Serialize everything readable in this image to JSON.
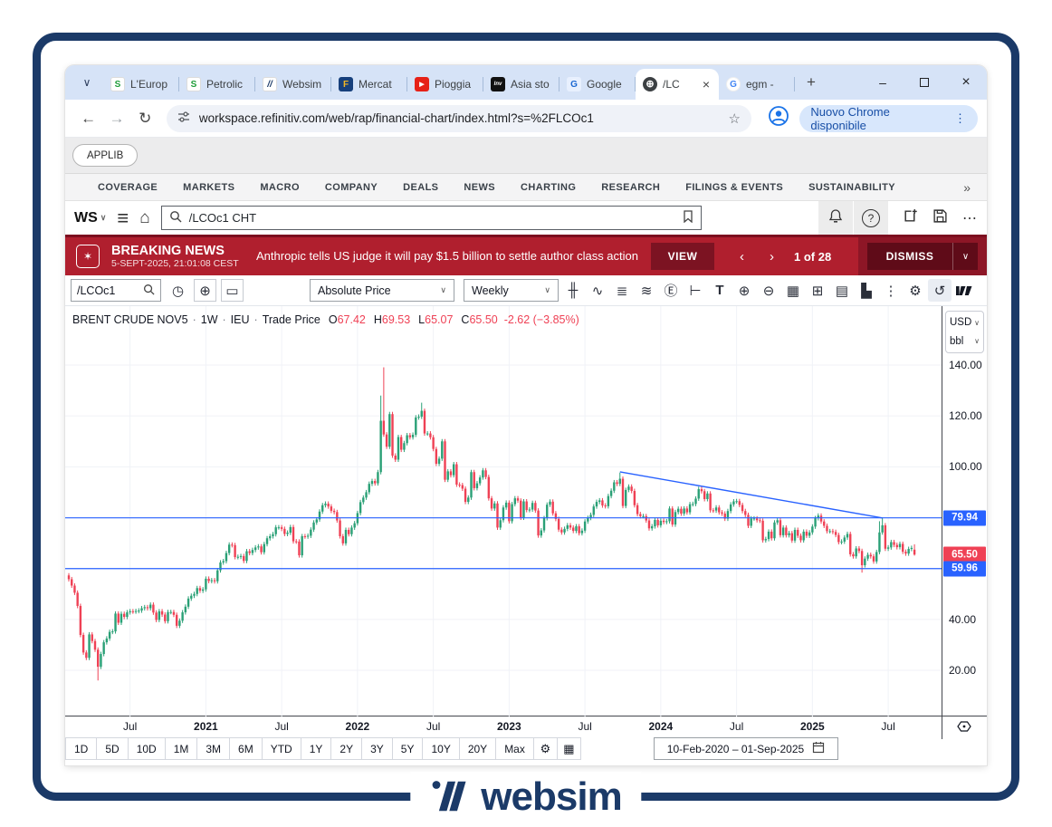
{
  "window": {
    "tabs": [
      {
        "label": "L'Europ",
        "icon": "s-logo-icon",
        "glyph": "S"
      },
      {
        "label": "Petrolic",
        "icon": "s-logo-icon",
        "glyph": "S"
      },
      {
        "label": "Websim",
        "icon": "websim-icon",
        "glyph": "//"
      },
      {
        "label": "Mercat",
        "icon": "f-logo-icon",
        "glyph": "F"
      },
      {
        "label": "Pioggia",
        "icon": "youtube-icon",
        "glyph": "▶"
      },
      {
        "label": "Asia sto",
        "icon": "investing-icon",
        "glyph": "Inv"
      },
      {
        "label": "Google",
        "icon": "google-translate-icon",
        "glyph": "G"
      },
      {
        "label": "/LC",
        "icon": "globe-icon",
        "glyph": "⊕",
        "active": true
      },
      {
        "label": "egm -",
        "icon": "google-g-icon",
        "glyph": "G"
      }
    ],
    "window_controls": [
      {
        "name": "minimize-icon"
      },
      {
        "name": "maximize-icon"
      },
      {
        "name": "close-icon"
      }
    ],
    "url": "workspace.refinitiv.com/web/rap/financial-chart/index.html?s=%2FLCOc1",
    "update_button": "Nuovo Chrome disponibile"
  },
  "app": {
    "applib_label": "APPLIB",
    "menu_items": [
      "COVERAGE",
      "MARKETS",
      "MACRO",
      "COMPANY",
      "DEALS",
      "NEWS",
      "CHARTING",
      "RESEARCH",
      "FILINGS & EVENTS",
      "SUSTAINABILITY"
    ],
    "menu_overflow": "»",
    "ws_logo": "WS",
    "search_value": "/LCOc1 CHT"
  },
  "news_banner": {
    "label": "BREAKING NEWS",
    "timestamp": "5-SEPT-2025, 21:01:08 CEST",
    "headline": "Anthropic tells US judge it will pay $1.5 billion to settle author class action",
    "view_button": "VIEW",
    "counter": "1 of 28",
    "dismiss_button": "DISMISS",
    "colors": {
      "banner": "#b01f2e",
      "button": "#7c1322",
      "border": "#7c0e1f"
    }
  },
  "chart_toolbar": {
    "symbol": "/LCOc1",
    "left_icons": [
      {
        "name": "clock-icon",
        "glyph": "◷",
        "boxed": false
      },
      {
        "name": "add-chart-icon",
        "glyph": "⊕",
        "boxed": true
      },
      {
        "name": "folder-icon",
        "glyph": "▭",
        "boxed": true
      }
    ],
    "price_mode": "Absolute Price",
    "interval": "Weekly",
    "right_icons": [
      {
        "name": "candlestick-style-icon",
        "glyph": "╫"
      },
      {
        "name": "indicators-icon",
        "glyph": "∿"
      },
      {
        "name": "layout-lines-icon",
        "glyph": "≣"
      },
      {
        "name": "compare-icon",
        "glyph": "≋"
      },
      {
        "name": "events-icon",
        "glyph": "Ⓔ"
      },
      {
        "name": "axis-scale-icon",
        "glyph": "⊢"
      },
      {
        "name": "text-annotation-icon",
        "glyph": "T"
      },
      {
        "name": "zoom-in-icon",
        "glyph": "⊕"
      },
      {
        "name": "zoom-out-icon",
        "glyph": "⊖"
      },
      {
        "name": "data-table-icon",
        "glyph": "▦"
      },
      {
        "name": "expand-icon",
        "glyph": "⊞"
      },
      {
        "name": "news-panel-icon",
        "glyph": "▤"
      },
      {
        "name": "volume-icon",
        "glyph": "▙"
      },
      {
        "name": "more-options-icon",
        "glyph": "⋮"
      },
      {
        "name": "settings-gear-icon",
        "glyph": "⚙"
      },
      {
        "name": "undo-icon",
        "glyph": "↺",
        "active": true
      },
      {
        "name": "tradingview-logo",
        "glyph": "TV"
      }
    ]
  },
  "legend": {
    "title": "BRENT CRUDE NOV5",
    "sep": "·",
    "interval": "1W",
    "exchange": "IEU",
    "field": "Trade Price",
    "o_label": "O",
    "o": "67.42",
    "h_label": "H",
    "h": "69.53",
    "l_label": "L",
    "l": "65.07",
    "c_label": "C",
    "c": "65.50",
    "change": "-2.62 (−3.85%)"
  },
  "price_axis": {
    "currency": "USD",
    "unit": "bbl",
    "labels": [
      {
        "price": 140,
        "text": "140.00"
      },
      {
        "price": 120,
        "text": "120.00"
      },
      {
        "price": 100,
        "text": "100.00"
      },
      {
        "price": 40,
        "text": "40.00"
      },
      {
        "price": 20,
        "text": "20.00"
      }
    ],
    "badges": [
      {
        "price": 79.94,
        "text": "79.94",
        "color": "#2962ff"
      },
      {
        "price": 65.5,
        "text": "65.50",
        "color": "#ef4155"
      },
      {
        "price": 59.96,
        "text": "59.96",
        "color": "#2962ff"
      }
    ]
  },
  "range_toolbar": {
    "buttons": [
      "1D",
      "5D",
      "10D",
      "1M",
      "3M",
      "6M",
      "YTD",
      "1Y",
      "2Y",
      "3Y",
      "5Y",
      "10Y",
      "20Y",
      "Max"
    ],
    "icons": [
      {
        "name": "range-settings-gear-icon",
        "glyph": "⚙"
      },
      {
        "name": "data-grid-icon",
        "glyph": "▦"
      }
    ],
    "date_range": "10-Feb-2020  –  01-Sep-2025"
  },
  "watermark": "websim",
  "chart_data": {
    "type": "candlestick",
    "symbol": "BRENT CRUDE NOV5",
    "interval": "Weekly",
    "x_range": [
      "10-Feb-2020",
      "01-Sep-2025"
    ],
    "y_view_range": [
      2,
      163
    ],
    "first_open": 57.3,
    "weekly_closes": [
      55.8,
      53.3,
      50.5,
      45.3,
      33.9,
      27,
      24.9,
      34.1,
      31.5,
      28.1,
      21.4,
      26.4,
      31,
      32.5,
      35.1,
      35.3,
      42.3,
      38.7,
      42.2,
      41,
      42.8,
      43.2,
      43.1,
      43.3,
      43.5,
      44.4,
      44.8,
      44.4,
      45.8,
      42.7,
      39.8,
      43.2,
      41.9,
      39.3,
      42.9,
      42.9,
      41.8,
      37.5,
      39.5,
      42.8,
      45,
      48.2,
      49.3,
      50,
      52.3,
      51.3,
      51.8,
      56,
      55.1,
      55.4,
      55,
      59.3,
      62.4,
      62.9,
      66.1,
      69.4,
      69.2,
      64.5,
      64.6,
      64.9,
      63,
      66.8,
      66.1,
      67.3,
      68.3,
      68.7,
      66.4,
      69.6,
      71.9,
      72.7,
      73.5,
      76.2,
      76.2,
      75.6,
      73.6,
      74.1,
      76.3,
      70.7,
      70.6,
      65.2,
      72.7,
      72.6,
      72.9,
      75.3,
      78.1,
      79.3,
      82.4,
      84.9,
      85.5,
      84.4,
      82.7,
      82.2,
      78.9,
      72.7,
      69.9,
      75.2,
      73.5,
      76.1,
      77.8,
      81.8,
      86.1,
      87.9,
      90,
      93.3,
      94.4,
      93.5,
      97.9,
      118.1,
      112.7,
      107.9,
      120.7,
      104.4,
      102.8,
      111.7,
      106.7,
      109.3,
      112.4,
      111.6,
      112.6,
      119.4,
      119.7,
      122,
      113.1,
      113.1,
      111.6,
      107,
      101.2,
      103.2,
      110,
      94.9,
      98.2,
      96.7,
      101,
      93,
      92.8,
      91.4,
      86.2,
      87.9,
      97.9,
      91.6,
      93.5,
      95.8,
      98.6,
      96,
      87.6,
      83.6,
      85.6,
      76.1,
      79,
      84,
      85.9,
      78.6,
      85.3,
      87.6,
      86.7,
      80,
      86.4,
      83,
      83.2,
      85.8,
      82.8,
      73,
      75,
      79.8,
      85.1,
      86.3,
      81.7,
      79.5,
      75.3,
      74.2,
      75.6,
      77,
      76.1,
      74.8,
      76.6,
      73.9,
      74.9,
      78.5,
      79.9,
      81.1,
      84.4,
      86.2,
      86.8,
      84.8,
      84.5,
      88.5,
      90.6,
      93.9,
      93.3,
      95.3,
      84.6,
      90.9,
      92.2,
      90.5,
      84.9,
      81.4,
      80.6,
      80.6,
      78.9,
      75.8,
      76.6,
      79.1,
      77,
      78.8,
      78.3,
      78.6,
      83.6,
      77.3,
      82.2,
      83.5,
      81.6,
      83.6,
      82.1,
      85.3,
      85.4,
      87.5,
      91.2,
      90.4,
      87.3,
      89.5,
      82.9,
      82.8,
      84,
      82.1,
      81.6,
      79.6,
      82.6,
      85.2,
      86.4,
      86.5,
      85,
      82.6,
      81.1,
      76.8,
      79.7,
      79.7,
      79,
      78.8,
      71.1,
      71.6,
      74.5,
      71.9,
      78.1,
      79,
      73.1,
      76.1,
      73.1,
      73.9,
      71,
      75.2,
      72.9,
      71.1,
      74.5,
      72.9,
      74.2,
      76.5,
      79.8,
      80.8,
      78.5,
      76.8,
      74.7,
      74.7,
      74.4,
      73.2,
      70.4,
      70.6,
      72.2,
      73.6,
      65.6,
      64.8,
      67.9,
      66.9,
      61.3,
      63.9,
      65.4,
      64.8,
      62.8,
      66.5,
      74.2,
      77,
      67.8,
      68.3,
      70.4,
      69.3,
      68.4,
      69.7,
      66.6,
      65.9,
      67.7,
      68.1,
      65.5
    ],
    "overrides": {
      "10": {
        "l": 16.0
      },
      "107": {
        "h": 128.0
      },
      "108": {
        "h": 139.1
      },
      "121": {
        "h": 125.2
      },
      "189": {
        "h": 97.7
      },
      "216": {
        "h": 92.2
      },
      "272": {
        "l": 58.4
      },
      "278": {
        "h": 78.6
      },
      "279": {
        "h": 79.9
      },
      "290": {
        "o": 67.42,
        "h": 69.53,
        "l": 65.07,
        "c": 65.5
      }
    },
    "x_ticks": [
      {
        "label": "Jul",
        "week": 21
      },
      {
        "label": "2021",
        "week": 47
      },
      {
        "label": "Jul",
        "week": 73
      },
      {
        "label": "2022",
        "week": 99
      },
      {
        "label": "Jul",
        "week": 125
      },
      {
        "label": "2023",
        "week": 151
      },
      {
        "label": "Jul",
        "week": 177
      },
      {
        "label": "2024",
        "week": 203
      },
      {
        "label": "Jul",
        "week": 229
      },
      {
        "label": "2025",
        "week": 255
      },
      {
        "label": "Jul",
        "week": 281
      }
    ],
    "y_gridlines": [
      20,
      40,
      60,
      80,
      100,
      120,
      140
    ],
    "horizontal_lines": [
      {
        "price": 79.94,
        "color": "#2962ff"
      },
      {
        "price": 59.96,
        "color": "#2962ff"
      }
    ],
    "trendline": {
      "from_week": 189,
      "from_price": 98.0,
      "to_week": 279,
      "to_price": 79.9,
      "color": "#2962ff"
    },
    "colors": {
      "up": "#2aa076",
      "down": "#ef4155"
    },
    "last": {
      "open": 67.42,
      "high": 69.53,
      "low": 65.07,
      "close": 65.5,
      "change": "-2.62 (−3.85%)"
    }
  }
}
